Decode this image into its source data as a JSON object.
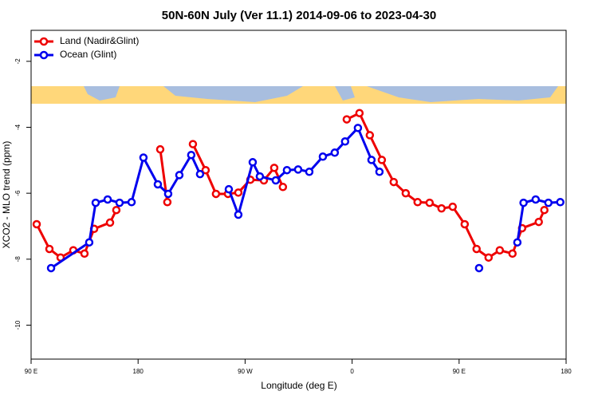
{
  "chart_data": {
    "type": "line",
    "title": "50N-60N July (Ver 11.1)   2014-09-06 to 2023-04-30",
    "x_label": "Longitude (deg E)",
    "y_label": "XCO2 - MLO trend (ppm)",
    "xlim": [
      90,
      540
    ],
    "xticks": [
      {
        "value": 90,
        "label": "90 E"
      },
      {
        "value": 180,
        "label": "180"
      },
      {
        "value": 270,
        "label": "90 W"
      },
      {
        "value": 360,
        "label": "0"
      },
      {
        "value": 450,
        "label": "90 E"
      },
      {
        "value": 540,
        "label": "180"
      }
    ],
    "ylim": [
      -11.03,
      -1.06
    ],
    "yticks": [
      -2,
      -4,
      -6,
      -8,
      -10
    ],
    "legend": "top-left",
    "series": [
      {
        "name": "Land (Nadir&Glint)",
        "color": "#ee0000",
        "x": [
          94.7,
          105.4,
          114.8,
          125.5,
          134.9,
          143.0,
          156.4,
          161.7,
          null,
          198.6,
          204.6,
          null,
          226.1,
          236.8,
          245.5,
          255.6,
          264.3,
          274.4,
          285.8,
          294.5,
          301.8,
          null,
          355.5,
          366.2,
          374.9,
          385.0,
          395.0,
          405.1,
          415.1,
          425.2,
          435.2,
          444.6,
          454.7,
          464.7,
          474.8,
          484.2,
          494.9,
          503.0,
          517.0,
          521.7
        ],
        "values": [
          -6.94,
          -7.69,
          -7.95,
          -7.73,
          -7.83,
          -7.08,
          -6.89,
          -6.51,
          null,
          -4.67,
          -6.27,
          null,
          -4.51,
          -5.3,
          -6.02,
          -6.02,
          -5.98,
          -5.59,
          -5.61,
          -5.23,
          -5.81,
          null,
          -3.76,
          -3.57,
          -4.24,
          -4.99,
          -5.66,
          -6.0,
          -6.27,
          -6.29,
          -6.46,
          -6.41,
          -6.94,
          -7.69,
          -7.95,
          -7.73,
          -7.83,
          -7.06,
          -6.87,
          -6.51
        ]
      },
      {
        "name": "Ocean (Glint)",
        "color": "#0000ee",
        "x": [
          106.8,
          138.9,
          144.3,
          154.4,
          164.4,
          174.5,
          184.5,
          196.6,
          205.3,
          214.7,
          224.7,
          232.1,
          null,
          256.3,
          264.3,
          276.4,
          282.4,
          295.8,
          305.2,
          314.6,
          324.0,
          335.4,
          345.4,
          354.1,
          364.9,
          376.3,
          383.0,
          null,
          466.8,
          null,
          499.0,
          504.2,
          514.4,
          525.1,
          535.1
        ],
        "values": [
          -8.27,
          -7.49,
          -6.29,
          -6.19,
          -6.29,
          -6.27,
          -4.92,
          -5.73,
          -6.02,
          -5.45,
          -4.84,
          -5.42,
          null,
          -5.88,
          -6.65,
          -5.06,
          -5.49,
          -5.61,
          -5.3,
          -5.28,
          -5.35,
          -4.89,
          -4.77,
          -4.43,
          -4.02,
          -4.99,
          -5.35,
          null,
          -8.27,
          null,
          -7.49,
          -6.29,
          -6.19,
          -6.29,
          -6.27
        ]
      }
    ]
  }
}
